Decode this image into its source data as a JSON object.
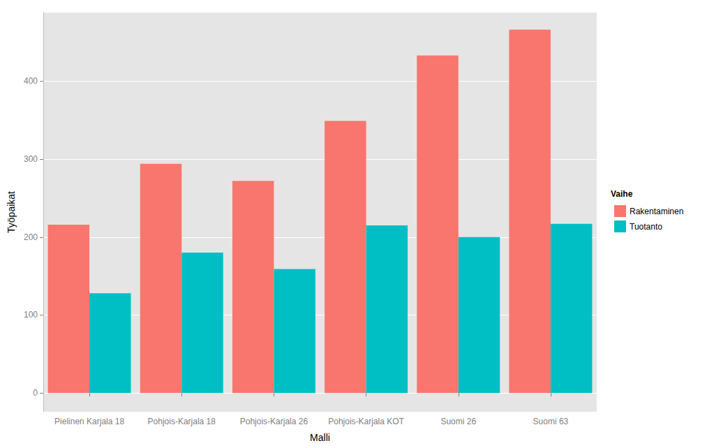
{
  "chart_data": {
    "type": "bar",
    "x_label": "Malli",
    "y_label": "Työpaikat",
    "legend_title": "Vaihe",
    "categories": [
      "Pielinen Karjala 18",
      "Pohjois-Karjala 18",
      "Pohjois-Karjala 26",
      "Pohjois-Karjala KOT",
      "Suomi 26",
      "Suomi 63"
    ],
    "series": [
      {
        "name": "Rakentaminen",
        "color": "#F8766D",
        "values": [
          216,
          294,
          272,
          349,
          433,
          466
        ]
      },
      {
        "name": "Tuotanto",
        "color": "#00BFC4",
        "values": [
          128,
          180,
          159,
          215,
          200,
          217
        ]
      }
    ],
    "ylim": [
      -24,
      488
    ],
    "yticks": [
      0,
      100,
      200,
      300,
      400
    ],
    "grid": true,
    "legend": "right"
  }
}
